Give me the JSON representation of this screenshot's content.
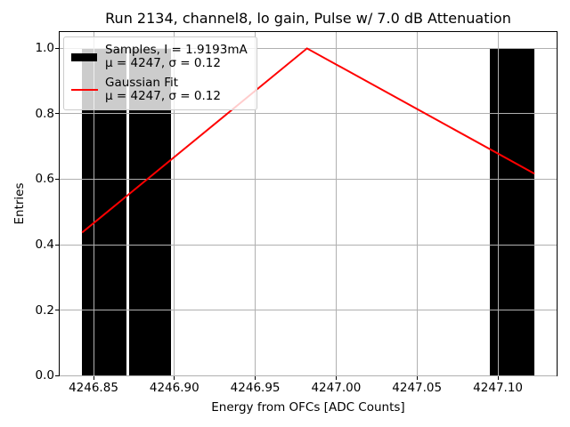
{
  "chart_data": {
    "type": "bar",
    "subtype": "histogram_with_gaussian_fit",
    "title": "Run 2134, channel8, lo gain, Pulse w/ 7.0 dB Attenuation",
    "xlabel": "Energy from OFCs [ADC Counts]",
    "ylabel": "Entries",
    "xlim": [
      4246.8291,
      4247.1363
    ],
    "ylim": [
      0,
      1.05
    ],
    "xticks": [
      4246.85,
      4246.9,
      4246.95,
      4247.0,
      4247.05,
      4247.1
    ],
    "xtick_labels": [
      "4246.85",
      "4246.90",
      "4246.95",
      "4247.00",
      "4247.05",
      "4247.10"
    ],
    "yticks": [
      0.0,
      0.2,
      0.4,
      0.6,
      0.8,
      1.0
    ],
    "ytick_labels": [
      "0.0",
      "0.2",
      "0.4",
      "0.6",
      "0.8",
      "1.0"
    ],
    "grid": true,
    "grid_color": "#b0b0b0",
    "axis_color": "#000000",
    "series": [
      {
        "name": "Samples, I = 1.9193mA",
        "type": "bar",
        "color": "#000000",
        "stats": "μ = 4247, σ = 0.12",
        "bars": [
          {
            "x0": 4246.843,
            "x1": 4246.8705,
            "height": 1.0
          },
          {
            "x0": 4246.8718,
            "x1": 4246.898,
            "height": 1.0
          },
          {
            "x0": 4247.095,
            "x1": 4247.1226,
            "height": 1.0
          }
        ]
      },
      {
        "name": "Gaussian Fit",
        "type": "line",
        "color": "#ff0000",
        "stats": "μ = 4247, σ = 0.12",
        "points": [
          [
            4246.843,
            0.437
          ],
          [
            4246.982,
            1.0
          ],
          [
            4247.1226,
            0.617
          ]
        ]
      }
    ],
    "legend": {
      "position": "upper left",
      "entries": [
        {
          "swatch": "black-patch",
          "label": "Samples, I = 1.9193mA",
          "stats": "μ = 4247, σ = 0.12"
        },
        {
          "swatch": "red-line",
          "label": "Gaussian Fit",
          "stats": "μ = 4247, σ = 0.12"
        }
      ]
    }
  }
}
